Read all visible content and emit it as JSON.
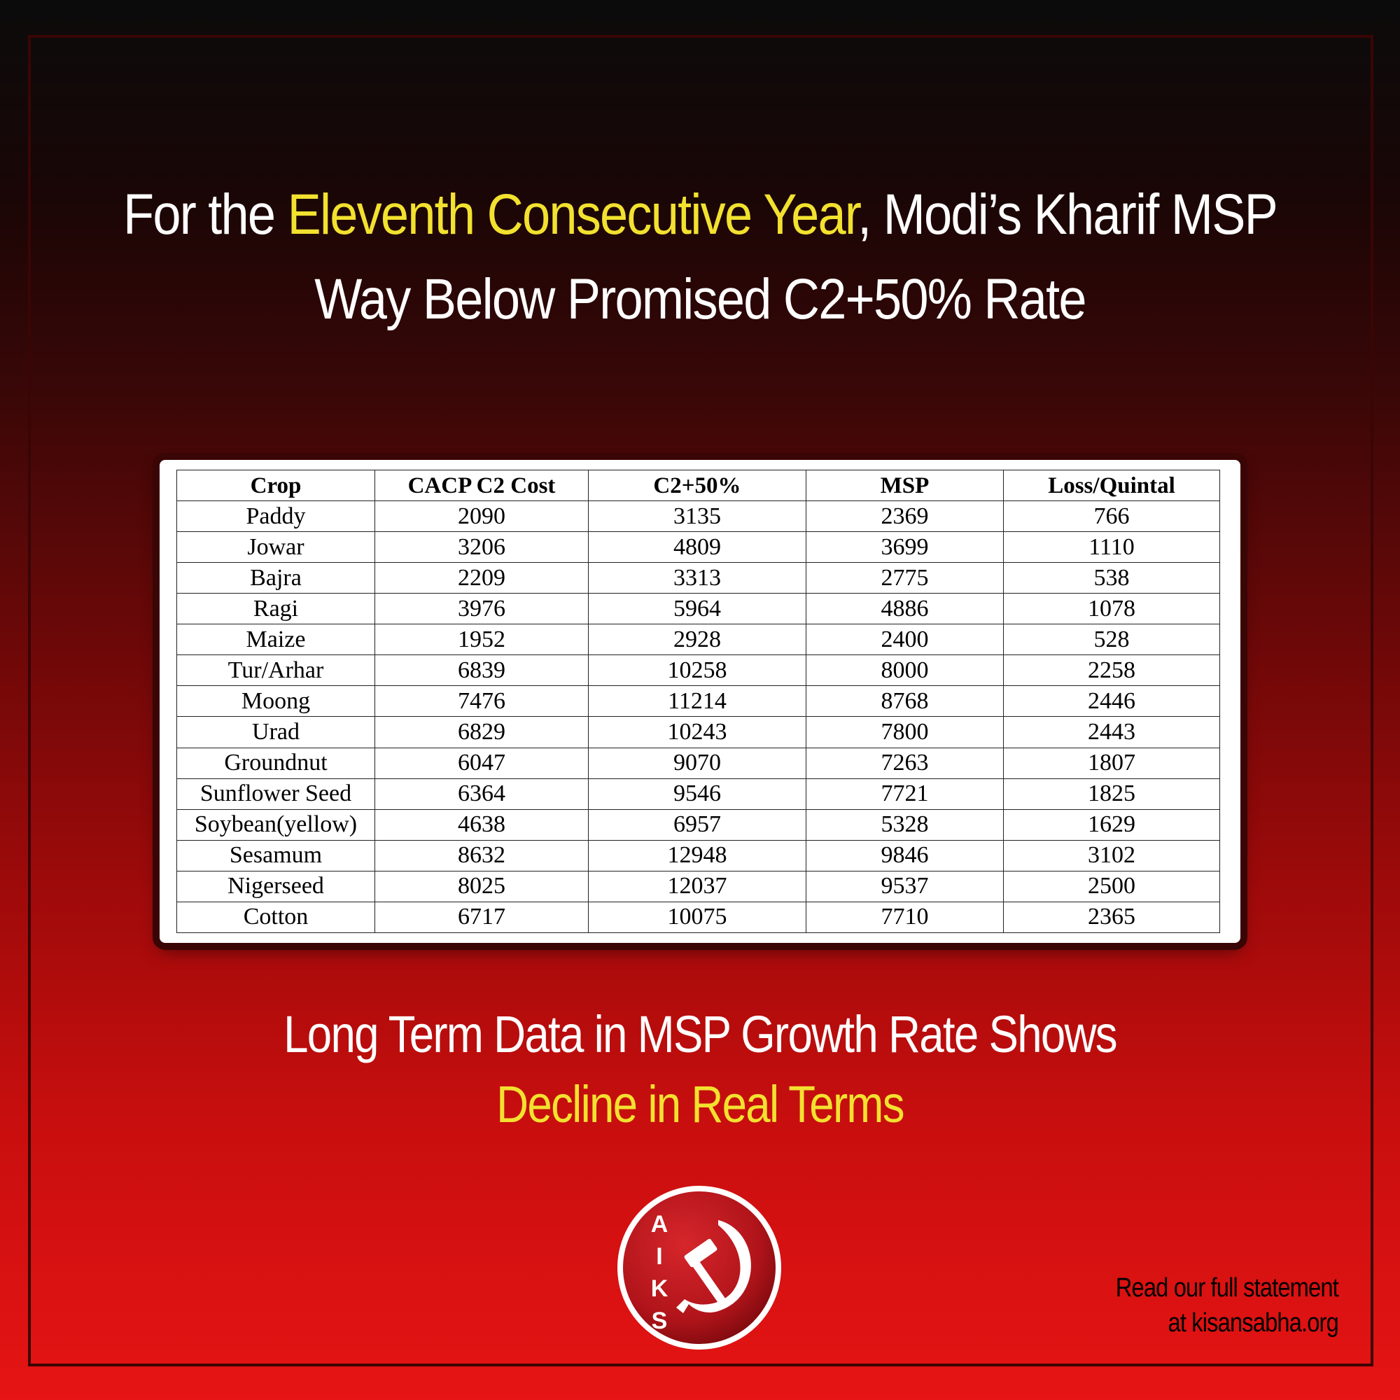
{
  "headline": {
    "line1_before": "For the ",
    "line1_highlight": "Eleventh Consecutive Year",
    "line1_after": ", Modi’s Kharif MSP",
    "line2": "Way Below Promised C2+50% Rate"
  },
  "table": {
    "headers": [
      "Crop",
      "CACP C2 Cost",
      "C2+50%",
      "MSP",
      "Loss/Quintal"
    ],
    "rows": [
      [
        "Paddy",
        "2090",
        "3135",
        "2369",
        "766"
      ],
      [
        "Jowar",
        "3206",
        "4809",
        "3699",
        "1110"
      ],
      [
        "Bajra",
        "2209",
        "3313",
        "2775",
        "538"
      ],
      [
        "Ragi",
        "3976",
        "5964",
        "4886",
        "1078"
      ],
      [
        "Maize",
        "1952",
        "2928",
        "2400",
        "528"
      ],
      [
        "Tur/Arhar",
        "6839",
        "10258",
        "8000",
        "2258"
      ],
      [
        "Moong",
        "7476",
        "11214",
        "8768",
        "2446"
      ],
      [
        "Urad",
        "6829",
        "10243",
        "7800",
        "2443"
      ],
      [
        "Groundnut",
        "6047",
        "9070",
        "7263",
        "1807"
      ],
      [
        "Sunflower Seed",
        "6364",
        "9546",
        "7721",
        "1825"
      ],
      [
        "Soybean(yellow)",
        "4638",
        "6957",
        "5328",
        "1629"
      ],
      [
        "Sesamum",
        "8632",
        "12948",
        "9846",
        "3102"
      ],
      [
        "Nigerseed",
        "8025",
        "12037",
        "9537",
        "2500"
      ],
      [
        "Cotton",
        "6717",
        "10075",
        "7710",
        "2365"
      ]
    ]
  },
  "subheading": {
    "line1": "Long Term Data in MSP Growth Rate Shows",
    "line2": "Decline in Real Terms"
  },
  "logo": {
    "letters": [
      "A",
      "I",
      "K",
      "S"
    ],
    "icon": "hammer-sickle-icon"
  },
  "footer": {
    "line1": "Read our full statement",
    "line2": "at kisansabha.org"
  },
  "colors": {
    "highlight": "#f2e12f",
    "text": "#ffffff",
    "logo_red": "#c4161c"
  }
}
